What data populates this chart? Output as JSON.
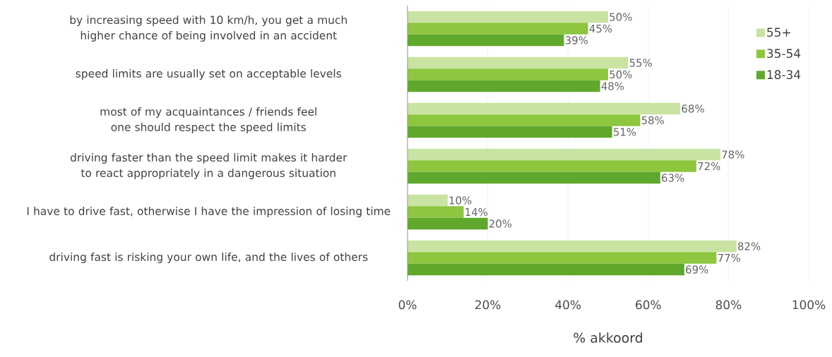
{
  "chart_data": {
    "type": "bar",
    "orientation": "horizontal",
    "xlabel": "% akkoord",
    "categories": [
      "by increasing speed with 10 km/h, you get a much higher chance of being involved in an accident",
      "speed limits are usually set on acceptable levels",
      "most of my acquaintances / friends feel one should respect the speed limits",
      "driving faster than the speed limit makes it harder to react appropriately  in a dangerous situation",
      "I have to drive fast, otherwise I have the impression of losing time",
      "driving fast is risking your own life, and the lives of others"
    ],
    "series": [
      {
        "name": "55+",
        "color": "#c9e4a2",
        "values": [
          50,
          55,
          68,
          78,
          10,
          82
        ],
        "value_labels": [
          "50%",
          "55%",
          "68%",
          "78%",
          "10%",
          "82%"
        ]
      },
      {
        "name": "35-54",
        "color": "#8dc63f",
        "values": [
          45,
          50,
          58,
          72,
          14,
          77
        ],
        "value_labels": [
          "45%",
          "50%",
          "58%",
          "72%",
          "14%",
          "77%"
        ]
      },
      {
        "name": "18-34",
        "color": "#5fa82c",
        "values": [
          39,
          48,
          51,
          63,
          20,
          69
        ],
        "value_labels": [
          "39%",
          "48%",
          "51%",
          "63%",
          "20%",
          "69%"
        ]
      }
    ],
    "xlim": [
      0,
      100
    ],
    "xticks": [
      {
        "value": 0,
        "label": "0%"
      },
      {
        "value": 20,
        "label": "20%"
      },
      {
        "value": 40,
        "label": "40%"
      },
      {
        "value": 60,
        "label": "60%"
      },
      {
        "value": 80,
        "label": "80%"
      },
      {
        "value": 100,
        "label": "100%"
      }
    ],
    "grid": "x",
    "legend": "right"
  }
}
